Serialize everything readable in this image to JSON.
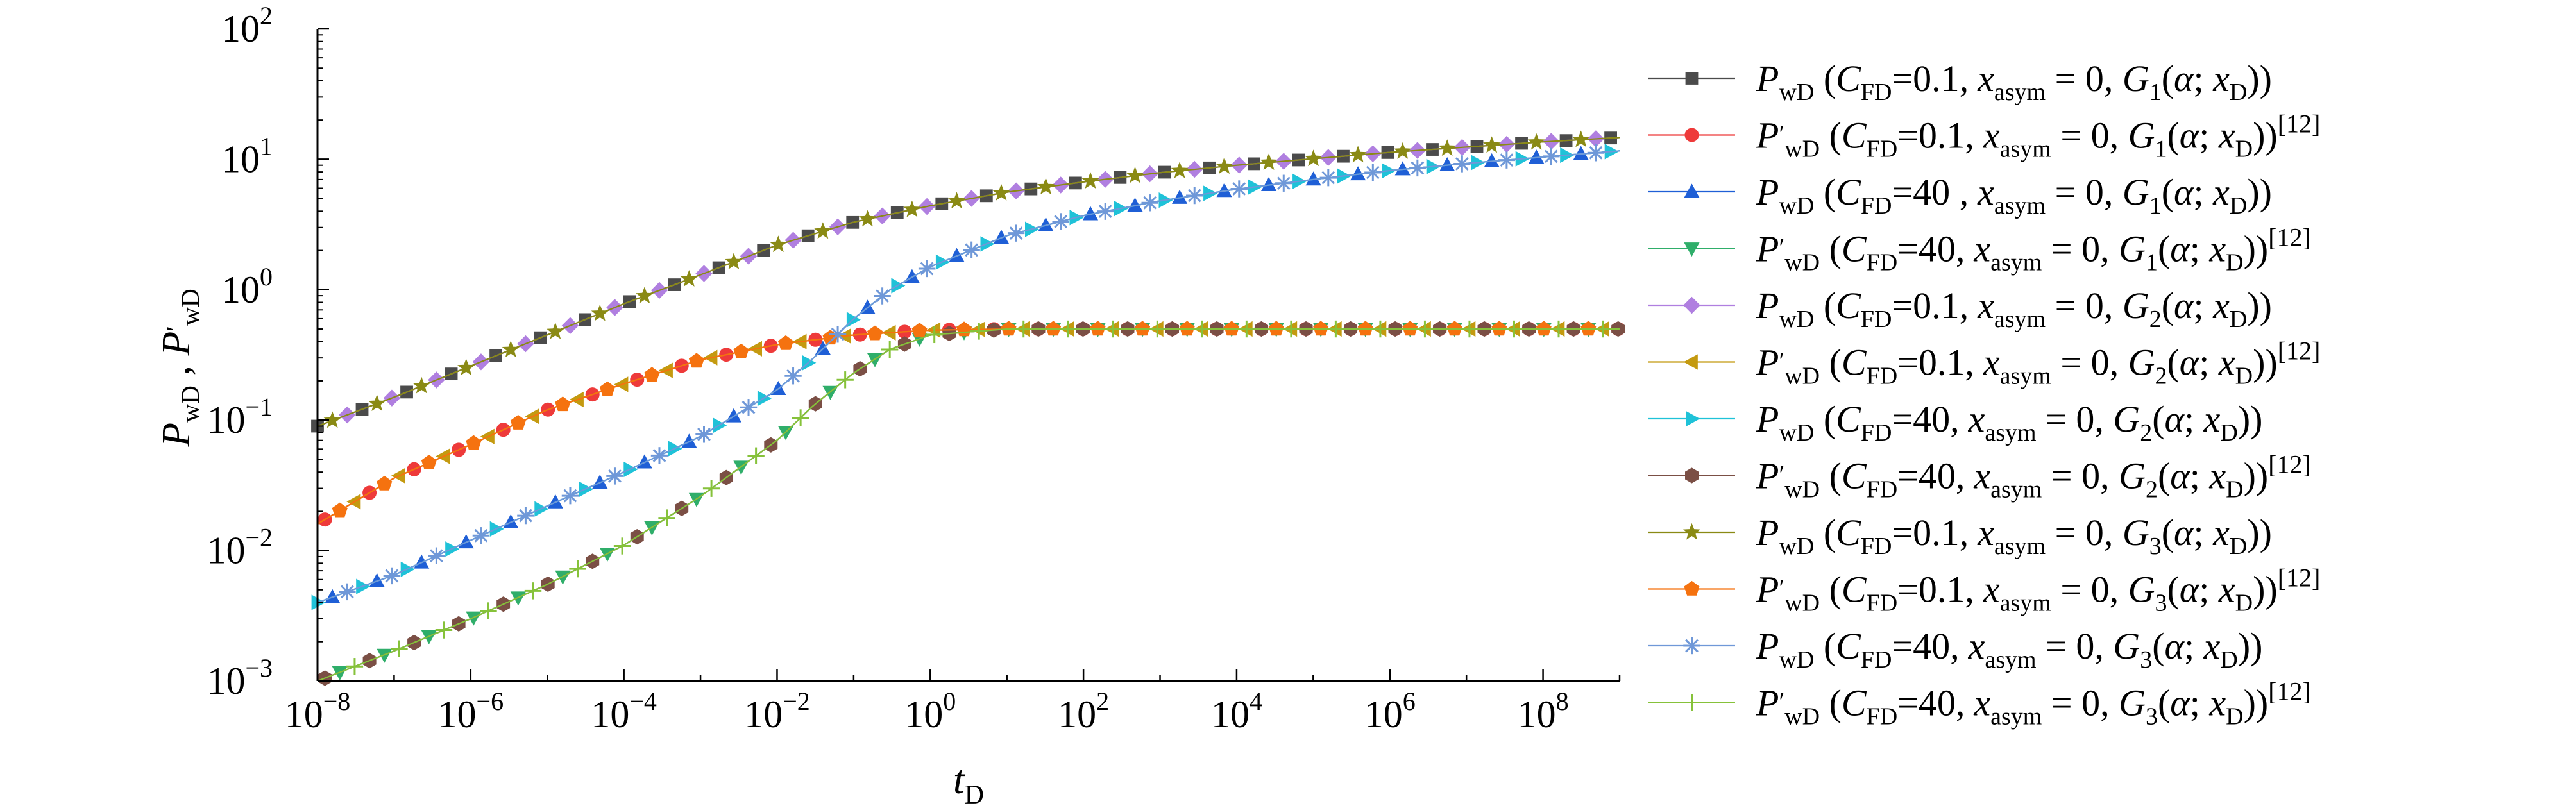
{
  "chart_data": {
    "type": "scatter",
    "title": "",
    "x_scale": "log",
    "y_scale": "log",
    "xlim": [
      1e-08,
      1000000000.0
    ],
    "ylim": [
      0.001,
      100
    ],
    "grid": false,
    "legend_position": "right",
    "xlabel": {
      "main": "t",
      "sub": "D"
    },
    "ylabel": {
      "main1": "P",
      "sub1": "wD",
      "sep": " , ",
      "main2": "P",
      "prime2": "′",
      "sub2": "wD"
    },
    "x_ticks": [
      {
        "value": 1e-08,
        "base": "10",
        "exp": "−8"
      },
      {
        "value": 1e-06,
        "base": "10",
        "exp": "−6"
      },
      {
        "value": 0.0001,
        "base": "10",
        "exp": "−4"
      },
      {
        "value": 0.01,
        "base": "10",
        "exp": "−2"
      },
      {
        "value": 1,
        "base": "10",
        "exp": "0"
      },
      {
        "value": 100.0,
        "base": "10",
        "exp": "2"
      },
      {
        "value": 10000.0,
        "base": "10",
        "exp": "4"
      },
      {
        "value": 1000000.0,
        "base": "10",
        "exp": "6"
      },
      {
        "value": 100000000.0,
        "base": "10",
        "exp": "8"
      }
    ],
    "y_ticks": [
      {
        "value": 0.001,
        "base": "10",
        "exp": "−3"
      },
      {
        "value": 0.01,
        "base": "10",
        "exp": "−2"
      },
      {
        "value": 0.1,
        "base": "10",
        "exp": "−1"
      },
      {
        "value": 1,
        "base": "10",
        "exp": "0"
      },
      {
        "value": 10,
        "base": "10",
        "exp": "1"
      },
      {
        "value": 100,
        "base": "10",
        "exp": "2"
      }
    ],
    "series": [
      {
        "P": "P",
        "prime": "",
        "P_sub": "wD",
        "open": " (",
        "C": "C",
        "C_sub": "FD",
        "cfd": "=0.1,",
        "x": "x",
        "x_sub": "asym",
        "eq": " = 0, ",
        "G": "G",
        "G_sub": "1",
        "arg_open": "(",
        "alpha": "α",
        "semi": "; ",
        "xd": "x",
        "xd_sub": "D",
        "close": "))",
        "ref": "",
        "color": "#4b4b4b",
        "marker": "square",
        "curve": "P_low"
      },
      {
        "P": "P",
        "prime": "′",
        "P_sub": "wD",
        "open": " (",
        "C": "C",
        "C_sub": "FD",
        "cfd": "=0.1,",
        "x": "x",
        "x_sub": "asym",
        "eq": " = 0, ",
        "G": "G",
        "G_sub": "1",
        "arg_open": "(",
        "alpha": "α",
        "semi": "; ",
        "xd": "x",
        "xd_sub": "D",
        "close": "))",
        "ref": "[12]",
        "color": "#ee3a3a",
        "marker": "circle",
        "curve": "D_low"
      },
      {
        "P": "P",
        "prime": "",
        "P_sub": "wD",
        "open": " (",
        "C": "C",
        "C_sub": "FD",
        "cfd": "=40 ,",
        "x": "x",
        "x_sub": "asym",
        "eq": " = 0, ",
        "G": "G",
        "G_sub": "1",
        "arg_open": "(",
        "alpha": "α",
        "semi": "; ",
        "xd": "x",
        "xd_sub": "D",
        "close": "))",
        "ref": "",
        "color": "#1f5fd6",
        "marker": "triangle-up",
        "curve": "P_high"
      },
      {
        "P": "P",
        "prime": "′",
        "P_sub": "wD",
        "open": " (",
        "C": "C",
        "C_sub": "FD",
        "cfd": "=40,",
        "x": "x",
        "x_sub": "asym",
        "eq": " = 0, ",
        "G": "G",
        "G_sub": "1",
        "arg_open": "(",
        "alpha": "α",
        "semi": "; ",
        "xd": "x",
        "xd_sub": "D",
        "close": "))",
        "ref": "[12]",
        "color": "#2fae6a",
        "marker": "triangle-down",
        "curve": "D_high"
      },
      {
        "P": "P",
        "prime": "",
        "P_sub": "wD",
        "open": " (",
        "C": "C",
        "C_sub": "FD",
        "cfd": "=0.1,",
        "x": "x",
        "x_sub": "asym",
        "eq": " = 0, ",
        "G": "G",
        "G_sub": "2",
        "arg_open": "(",
        "alpha": "α",
        "semi": "; ",
        "xd": "x",
        "xd_sub": "D",
        "close": "))",
        "ref": "",
        "color": "#b07fe0",
        "marker": "diamond",
        "curve": "P_low"
      },
      {
        "P": "P",
        "prime": "′",
        "P_sub": "wD",
        "open": " (",
        "C": "C",
        "C_sub": "FD",
        "cfd": "=0.1,",
        "x": "x",
        "x_sub": "asym",
        "eq": " = 0, ",
        "G": "G",
        "G_sub": "2",
        "arg_open": "(",
        "alpha": "α",
        "semi": "; ",
        "xd": "x",
        "xd_sub": "D",
        "close": "))",
        "ref": "[12]",
        "color": "#c49a10",
        "marker": "triangle-left",
        "curve": "D_low"
      },
      {
        "P": "P",
        "prime": "",
        "P_sub": "wD",
        "open": " (",
        "C": "C",
        "C_sub": "FD",
        "cfd": "=40,",
        "x": "x",
        "x_sub": "asym",
        "eq": " = 0, ",
        "G": "G",
        "G_sub": "2",
        "arg_open": "(",
        "alpha": "α",
        "semi": "; ",
        "xd": "x",
        "xd_sub": "D",
        "close": "))",
        "ref": "",
        "color": "#1fc2d8",
        "marker": "triangle-right",
        "curve": "P_high"
      },
      {
        "P": "P",
        "prime": "′",
        "P_sub": "wD",
        "open": " (",
        "C": "C",
        "C_sub": "FD",
        "cfd": "=40,",
        "x": "x",
        "x_sub": "asym",
        "eq": " = 0, ",
        "G": "G",
        "G_sub": "2",
        "arg_open": "(",
        "alpha": "α",
        "semi": "; ",
        "xd": "x",
        "xd_sub": "D",
        "close": "))",
        "ref": "[12]",
        "color": "#7b4f45",
        "marker": "hexagon",
        "curve": "D_high"
      },
      {
        "P": "P",
        "prime": "",
        "P_sub": "wD",
        "open": " (",
        "C": "C",
        "C_sub": "FD",
        "cfd": "=0.1,",
        "x": "x",
        "x_sub": "asym",
        "eq": " = 0, ",
        "G": "G",
        "G_sub": "3",
        "arg_open": "(",
        "alpha": "α",
        "semi": "; ",
        "xd": "x",
        "xd_sub": "D",
        "close": "))",
        "ref": "",
        "color": "#8a8a14",
        "marker": "star",
        "curve": "P_low"
      },
      {
        "P": "P",
        "prime": "′",
        "P_sub": "wD",
        "open": " (",
        "C": "C",
        "C_sub": "FD",
        "cfd": "=0.1,",
        "x": "x",
        "x_sub": "asym",
        "eq": " = 0, ",
        "G": "G",
        "G_sub": "3",
        "arg_open": "(",
        "alpha": "α",
        "semi": "; ",
        "xd": "x",
        "xd_sub": "D",
        "close": "))",
        "ref": "[12]",
        "color": "#f5720f",
        "marker": "pentagon",
        "curve": "D_low"
      },
      {
        "P": "P",
        "prime": "",
        "P_sub": "wD",
        "open": " (",
        "C": "C",
        "C_sub": "FD",
        "cfd": "=40,",
        "x": "x",
        "x_sub": "asym",
        "eq": " = 0, ",
        "G": "G",
        "G_sub": "3",
        "arg_open": "(",
        "alpha": "α",
        "semi": "; ",
        "xd": "x",
        "xd_sub": "D",
        "close": "))",
        "ref": "",
        "color": "#6f98d8",
        "marker": "asterisk",
        "curve": "P_high"
      },
      {
        "P": "P",
        "prime": "′",
        "P_sub": "wD",
        "open": " (",
        "C": "C",
        "C_sub": "FD",
        "cfd": "=40,",
        "x": "x",
        "x_sub": "asym",
        "eq": " = 0, ",
        "G": "G",
        "G_sub": "3",
        "arg_open": "(",
        "alpha": "α",
        "semi": "; ",
        "xd": "x",
        "xd_sub": "D",
        "close": "))",
        "ref": "[12]",
        "color": "#86c23a",
        "marker": "plus",
        "curve": "D_high"
      }
    ],
    "curves": {
      "P_low": {
        "x": [
          1e-08,
          1e-07,
          1e-06,
          1e-05,
          0.0001,
          0.001,
          0.01,
          0.1,
          1,
          10,
          100,
          1000.0,
          10000.0,
          100000.0,
          1000000.0,
          10000000.0,
          100000000.0,
          1000000000.0
        ],
        "y": [
          0.09,
          0.15,
          0.26,
          0.45,
          0.78,
          1.3,
          2.2,
          3.3,
          4.4,
          5.6,
          6.7,
          7.9,
          9.0,
          10.1,
          11.3,
          12.4,
          13.6,
          14.7
        ]
      },
      "D_low": {
        "x": [
          1e-08,
          1e-07,
          1e-06,
          1e-05,
          0.0001,
          0.001,
          0.01,
          0.1,
          1,
          10,
          100,
          1000.0,
          10000.0,
          100000.0,
          1000000.0,
          10000000.0,
          100000000.0,
          1000000000.0
        ],
        "y": [
          0.016,
          0.036,
          0.065,
          0.12,
          0.19,
          0.29,
          0.38,
          0.45,
          0.49,
          0.5,
          0.5,
          0.5,
          0.5,
          0.5,
          0.5,
          0.5,
          0.5,
          0.5
        ]
      },
      "P_high": {
        "x": [
          1e-08,
          1e-07,
          1e-06,
          1e-05,
          0.0001,
          0.001,
          0.01,
          0.03,
          0.1,
          0.3,
          1,
          10,
          100,
          1000.0,
          10000.0,
          100000.0,
          1000000.0,
          10000000.0,
          100000000.0,
          1000000000.0
        ],
        "y": [
          0.004,
          0.0065,
          0.012,
          0.022,
          0.04,
          0.075,
          0.17,
          0.3,
          0.6,
          1.0,
          1.5,
          2.6,
          3.7,
          4.8,
          5.9,
          7.0,
          8.2,
          9.3,
          10.4,
          11.6
        ]
      },
      "D_high": {
        "x": [
          1e-08,
          1e-07,
          1e-06,
          1e-05,
          0.0001,
          0.001,
          0.01,
          0.03,
          0.1,
          0.3,
          1,
          10,
          100,
          1000.0,
          10000.0,
          100000.0,
          1000000.0,
          10000000.0,
          100000000.0,
          1000000000.0
        ],
        "y": [
          0.001,
          0.0017,
          0.003,
          0.0055,
          0.011,
          0.026,
          0.07,
          0.13,
          0.23,
          0.35,
          0.45,
          0.5,
          0.5,
          0.5,
          0.5,
          0.5,
          0.5,
          0.5,
          0.5,
          0.5
        ]
      }
    }
  }
}
